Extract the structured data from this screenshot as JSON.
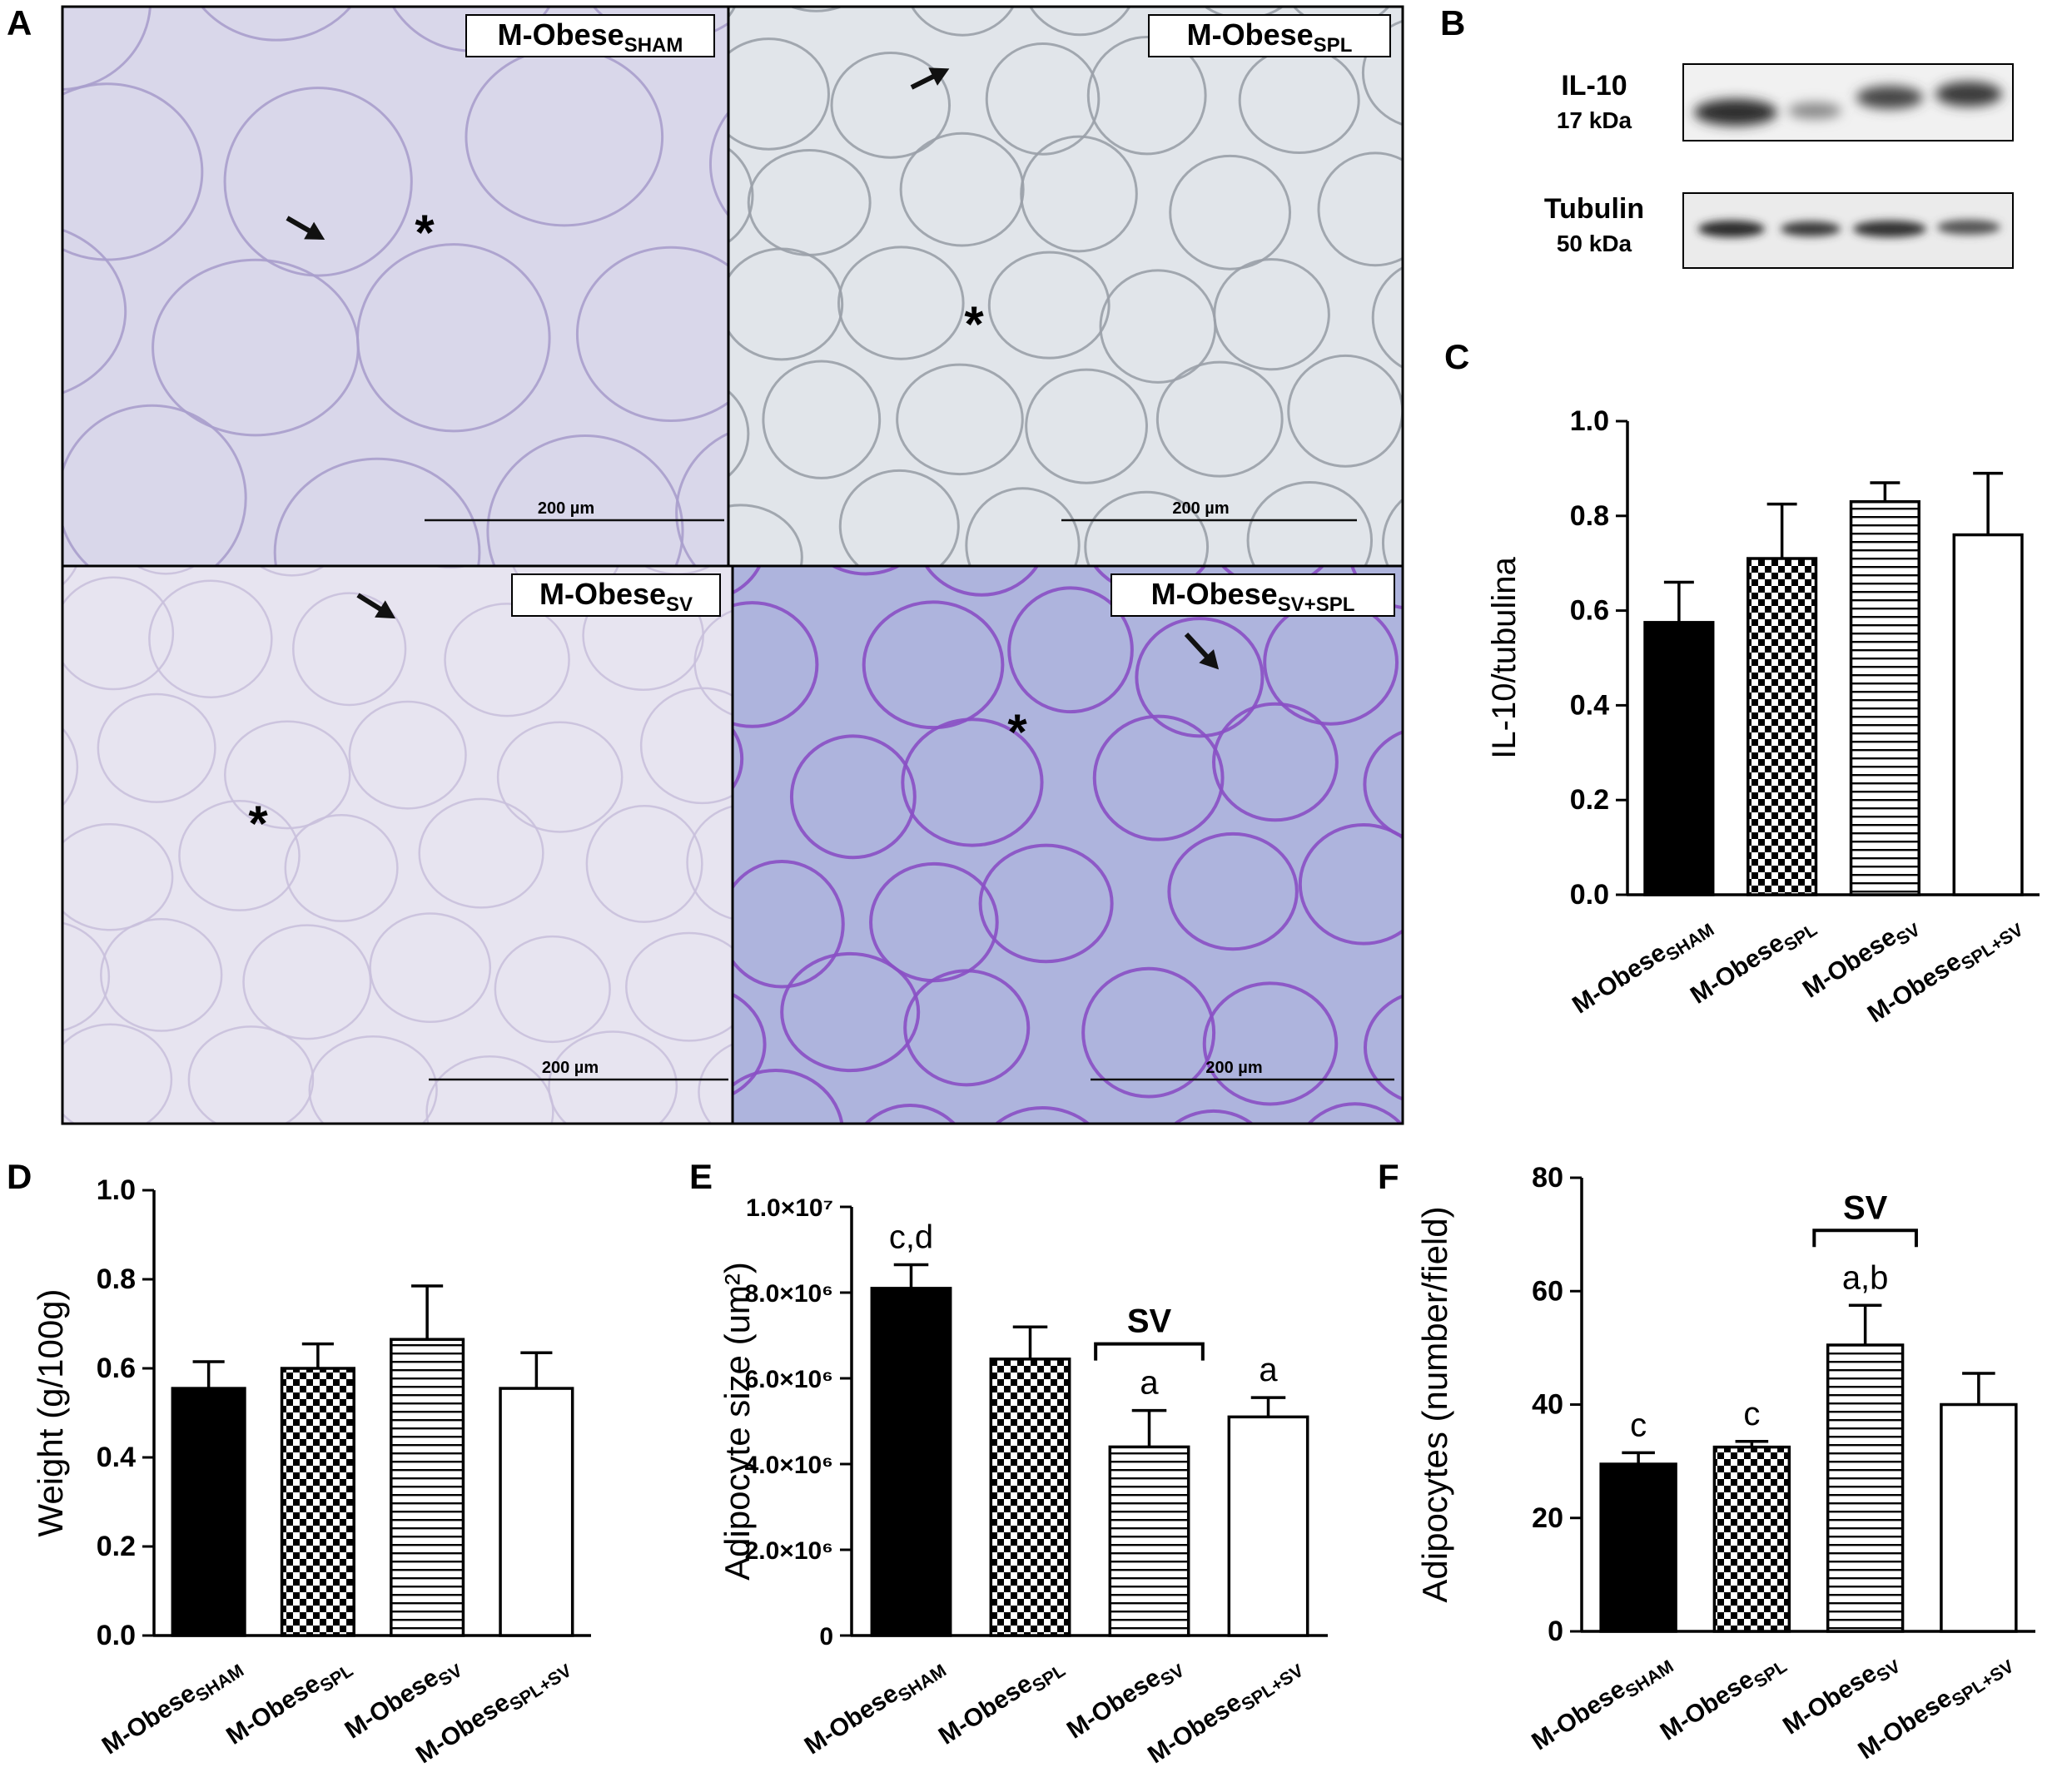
{
  "panels": {
    "A": "A",
    "B": "B",
    "C": "C",
    "D": "D",
    "E": "E",
    "F": "F"
  },
  "micrographs": [
    {
      "label_main": "M-Obese",
      "label_sub": "SHAM",
      "scale": "200 µm",
      "tint": "#d9d7ea"
    },
    {
      "label_main": "M-Obese",
      "label_sub": "SPL",
      "scale": "200 µm",
      "tint": "#e1e5ea"
    },
    {
      "label_main": "M-Obese",
      "label_sub": "SV",
      "scale": "200 µm",
      "tint": "#e7e4f0"
    },
    {
      "label_main": "M-Obese",
      "label_sub": "SV+SPL",
      "scale": "200 µm",
      "tint": "#aeb4dd"
    }
  ],
  "western_blot": {
    "bands": [
      {
        "name": "IL-10",
        "size": "17 kDa"
      },
      {
        "name": "Tubulin",
        "size": "50 kDa"
      }
    ]
  },
  "chart_data": [
    {
      "panel": "C",
      "type": "bar",
      "categories": [
        "SHAM",
        "SPL",
        "SV",
        "SPL+SV"
      ],
      "category_prefix": "M-Obese",
      "values": [
        0.575,
        0.71,
        0.83,
        0.76
      ],
      "errors": [
        0.085,
        0.115,
        0.04,
        0.13
      ],
      "fills": [
        "solid",
        "checker",
        "hlines",
        "white"
      ],
      "ylabel": "IL-10/tubulina",
      "ylim": [
        0,
        1.0
      ],
      "yticks": [
        "0.0",
        "0.2",
        "0.4",
        "0.6",
        "0.8",
        "1.0"
      ],
      "annotations": []
    },
    {
      "panel": "D",
      "type": "bar",
      "categories": [
        "SHAM",
        "SPL",
        "SV",
        "SPL+SV"
      ],
      "category_prefix": "M-Obese",
      "values": [
        0.555,
        0.6,
        0.665,
        0.555
      ],
      "errors": [
        0.06,
        0.055,
        0.12,
        0.08
      ],
      "fills": [
        "solid",
        "checker",
        "hlines",
        "white"
      ],
      "ylabel": "Weight (g/100g)",
      "ylim": [
        0,
        1.0
      ],
      "yticks": [
        "0.0",
        "0.2",
        "0.4",
        "0.6",
        "0.8",
        "1.0"
      ],
      "annotations": []
    },
    {
      "panel": "E",
      "type": "bar",
      "categories": [
        "SHAM",
        "SPL",
        "SV",
        "SPL+SV"
      ],
      "category_prefix": "M-Obese",
      "values": [
        8100000,
        6450000,
        4400000,
        5100000
      ],
      "errors": [
        550000,
        750000,
        850000,
        450000
      ],
      "fills": [
        "solid",
        "checker",
        "hlines",
        "white"
      ],
      "ylabel": "Adipocyte size (um²)",
      "ylim": [
        0,
        10000000
      ],
      "yticks": [
        "0",
        "2.0×10⁶",
        "4.0×10⁶",
        "6.0×10⁶",
        "8.0×10⁶",
        "1.0×10⁷"
      ],
      "annotations": [
        {
          "bar": 0,
          "text": "c,d"
        },
        {
          "bar": 2,
          "text": "a"
        },
        {
          "bar": 3,
          "text": "a"
        }
      ],
      "bracket": {
        "bar": 2,
        "text": "SV"
      }
    },
    {
      "panel": "F",
      "type": "bar",
      "categories": [
        "SHAM",
        "SPL",
        "SV",
        "SPL+SV"
      ],
      "category_prefix": "M-Obese",
      "values": [
        29.5,
        32.5,
        50.5,
        40
      ],
      "errors": [
        2,
        1,
        7,
        5.5
      ],
      "fills": [
        "solid",
        "checker",
        "hlines",
        "white"
      ],
      "ylabel": "Adipocytes (number/field)",
      "ylim": [
        0,
        80
      ],
      "yticks": [
        "0",
        "20",
        "40",
        "60",
        "80"
      ],
      "annotations": [
        {
          "bar": 0,
          "text": "c"
        },
        {
          "bar": 1,
          "text": "c"
        },
        {
          "bar": 2,
          "text": "a,b"
        }
      ],
      "bracket": {
        "bar": 2,
        "text": "SV"
      }
    }
  ]
}
